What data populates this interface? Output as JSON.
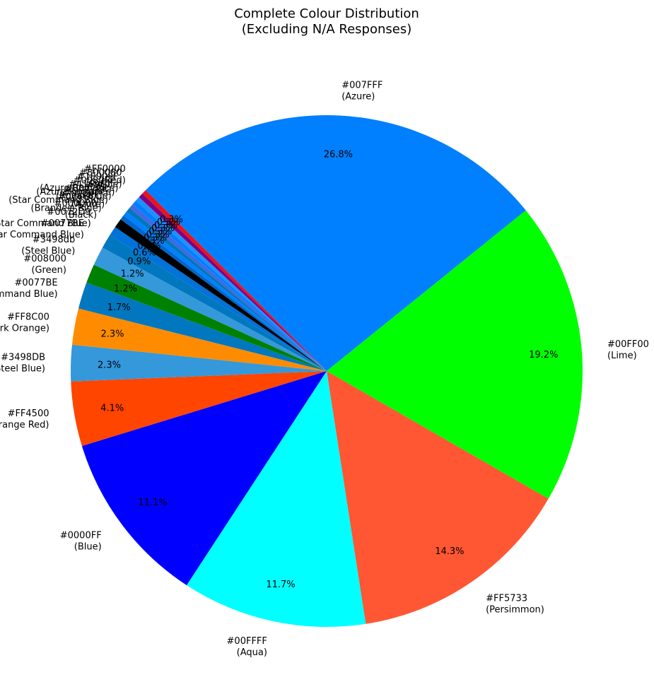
{
  "chart_data": {
    "type": "pie",
    "title": "Complete Colour Distribution",
    "subtitle": "(Excluding N/A Responses)",
    "start_angle_deg": 135,
    "direction": "clockwise",
    "slices": [
      {
        "label": "#007FFF",
        "sublabel": "(Azure)",
        "value": 26.8,
        "pct_text": "26.8%",
        "color": "#007FFF"
      },
      {
        "label": "#00FF00",
        "sublabel": "(Lime)",
        "value": 19.2,
        "pct_text": "19.2%",
        "color": "#00FF00"
      },
      {
        "label": "#FF5733",
        "sublabel": "(Persimmon)",
        "value": 14.3,
        "pct_text": "14.3%",
        "color": "#FF5733"
      },
      {
        "label": "#00FFFF",
        "sublabel": "(Aqua)",
        "value": 11.7,
        "pct_text": "11.7%",
        "color": "#00FFFF"
      },
      {
        "label": "#0000FF",
        "sublabel": "(Blue)",
        "value": 11.1,
        "pct_text": "11.1%",
        "color": "#0000FF"
      },
      {
        "label": "#FF4500",
        "sublabel": "(Orange Red)",
        "value": 4.1,
        "pct_text": "4.1%",
        "color": "#FF4500"
      },
      {
        "label": "#3498DB",
        "sublabel": "(Steel Blue)",
        "value": 2.3,
        "pct_text": "2.3%",
        "color": "#3498DB"
      },
      {
        "label": "#FF8C00",
        "sublabel": "(Dark Orange)",
        "value": 2.3,
        "pct_text": "2.3%",
        "color": "#FF8C00"
      },
      {
        "label": "#0077BE",
        "sublabel": "(Star Command Blue)",
        "value": 1.7,
        "pct_text": "1.7%",
        "color": "#0077BE"
      },
      {
        "label": "#008000",
        "sublabel": "(Green)",
        "value": 1.2,
        "pct_text": "1.2%",
        "color": "#008000"
      },
      {
        "label": "#3498db",
        "sublabel": "(Steel Blue)",
        "value": 1.2,
        "pct_text": "1.2%",
        "color": "#3498DB"
      },
      {
        "label": "#0077BE",
        "sublabel": "(Star Command Blue)",
        "value": 0.9,
        "pct_text": "0.9%",
        "color": "#0077BE"
      },
      {
        "label": "#0072D9",
        "sublabel": "(Star Command Blue)",
        "value": 0.6,
        "pct_text": "0.6%",
        "color": "#0072D9"
      },
      {
        "label": "#000000",
        "sublabel": "(Black)",
        "value": 0.6,
        "pct_text": "0.6%",
        "color": "#000000"
      },
      {
        "label": "#0066CC",
        "sublabel": "(Brandeis Blue)",
        "value": 0.3,
        "pct_text": "0.3%",
        "color": "#0066CC"
      },
      {
        "label": "#0080FF",
        "sublabel": "(Azure)",
        "value": 0.3,
        "pct_text": "0.3%",
        "color": "#0080FF"
      },
      {
        "label": "#0077BE",
        "sublabel": "(Star Command Blue)",
        "value": 0.3,
        "pct_text": "0.3%",
        "color": "#0077BE"
      },
      {
        "label": "#4169E1",
        "sublabel": "(Royal Blue)",
        "value": 0.3,
        "pct_text": "0.3%",
        "color": "#4169E1"
      },
      {
        "label": "#0080FF",
        "sublabel": "(Azure Radiance)",
        "value": 0.3,
        "pct_text": "0.3%",
        "color": "#0080FF"
      },
      {
        "label": "#1E90FF",
        "sublabel": "(Azure Radiance)",
        "value": 0.3,
        "pct_text": "0.3%",
        "color": "#1E90FF"
      },
      {
        "label": "#800080",
        "sublabel": "(Purple)",
        "value": 0.3,
        "pct_text": "0.3%",
        "color": "#800080"
      },
      {
        "label": "#FF0000",
        "sublabel": "(Red)",
        "value": 0.3,
        "pct_text": "0.3%",
        "color": "#E8141C"
      }
    ]
  }
}
